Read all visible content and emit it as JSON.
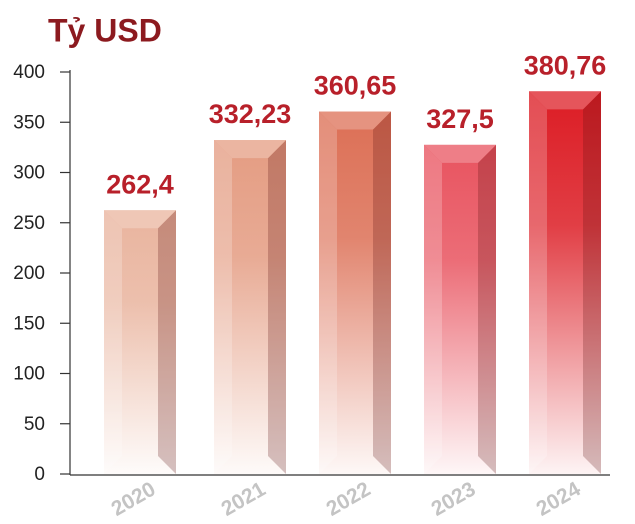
{
  "chart_data": {
    "type": "bar",
    "title": "Tỷ USD",
    "categories": [
      "2020",
      "2021",
      "2022",
      "2023",
      "2024"
    ],
    "values": [
      262.4,
      332.23,
      360.65,
      327.5,
      380.76
    ],
    "value_labels": [
      "262,4",
      "332,23",
      "360,65",
      "327,5",
      "380,76"
    ],
    "colors": [
      "#e9b49e",
      "#e49c82",
      "#dc6f55",
      "#e8535f",
      "#dc1c24"
    ],
    "ylim": [
      0,
      400
    ],
    "yticks": [
      0,
      50,
      100,
      150,
      200,
      250,
      300,
      350,
      400
    ]
  }
}
